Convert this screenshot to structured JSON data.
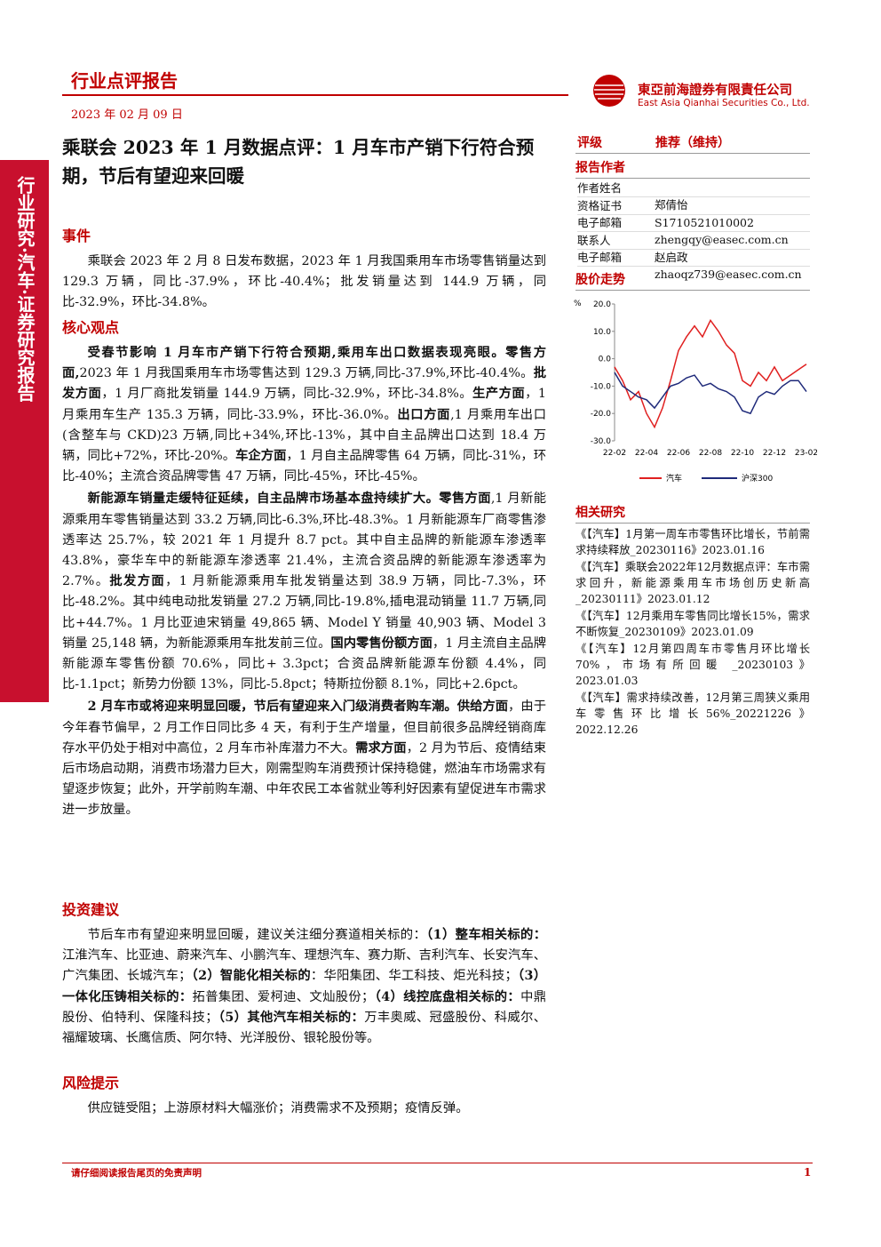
{
  "header": {
    "title": "行业点评报告",
    "date": "2023 年 02 月 09 日",
    "company_cn": "東亞前海證券有限責任公司",
    "company_en": "East Asia Qianhai Securities Co., Ltd."
  },
  "side_banner": "行业研究·汽车·证券研究报告",
  "title": "乘联会 2023 年 1 月数据点评：1 月车市产销下行符合预期，节后有望迎来回暖",
  "sections": [
    {
      "heading": "事件",
      "paragraphs": [
        {
          "runs": [
            "乘联会 2023 年 2 月 8 日发布数据，2023 年 1 月我国乘用车市场零售销量达到 129.3 万辆，同比-37.9%，环比-40.4%；批发销量达到 144.9 万辆，同比-32.9%，环比-34.8%。"
          ]
        }
      ]
    },
    {
      "heading": "核心观点",
      "paragraphs": [
        {
          "runs": [
            {
              "t": "受春节影响 1 月车市产销下行符合预期,乘用车出口数据表现亮眼。",
              "b": true
            },
            {
              "t": "零售方面,",
              "b": true
            },
            "2023 年 1 月我国乘用车市场零售达到 129.3 万辆,同比-37.9%,环比-40.4%。",
            {
              "t": "批发方面",
              "b": true
            },
            "，1 月厂商批发销量 144.9 万辆，同比-32.9%，环比-34.8%。",
            {
              "t": "生产方面",
              "b": true
            },
            "，1 月乘用车生产 135.3 万辆，同比-33.9%，环比-36.0%。",
            {
              "t": "出口方面",
              "b": true
            },
            ",1 月乘用车出口(含整车与 CKD)23 万辆,同比+34%,环比-13%，其中自主品牌出口达到 18.4 万辆，同比+72%，环比-20%。",
            {
              "t": "车企方面",
              "b": true
            },
            "，1 月自主品牌零售 64 万辆，同比-31%，环比-40%；主流合资品牌零售 47 万辆，同比-45%，环比-45%。"
          ]
        },
        {
          "runs": [
            {
              "t": "新能源车销量走缓特征延续，自主品牌市场基本盘持续扩大。零售方面",
              "b": true
            },
            ",1 月新能源乘用车零售销量达到 33.2 万辆,同比-6.3%,环比-48.3%。1 月新能源车厂商零售渗透率达 25.7%，较 2021 年 1 月提升 8.7 pct。其中自主品牌的新能源车渗透率 43.8%，豪华车中的新能源车渗透率 21.4%，主流合资品牌的新能源车渗透率为 2.7%。",
            {
              "t": "批发方面",
              "b": true
            },
            "，1 月新能源乘用车批发销量达到 38.9 万辆，同比-7.3%，环比-48.2%。其中纯电动批发销量 27.2 万辆,同比-19.8%,插电混动销量 11.7 万辆,同比+44.7%。1 月比亚迪宋销量 49,865 辆、Model Y 销量 40,903 辆、Model 3 销量 25,148 辆，为新能源乘用车批发前三位。",
            {
              "t": "国内零售份额方面",
              "b": true
            },
            "，1 月主流自主品牌新能源车零售份额 70.6%，同比+ 3.3pct；合资品牌新能源车份额 4.4%，同比-1.1pct；新势力份额 13%，同比-5.8pct；特斯拉份额 8.1%，同比+2.6pct。"
          ]
        },
        {
          "runs": [
            {
              "t": "2 月车市或将迎来明显回暖，节后有望迎来入门级消费者购车潮。供给方面",
              "b": true
            },
            "，由于今年春节偏早，2 月工作日同比多 4 天，有利于生产增量，但目前很多品牌经销商库存水平仍处于相对中高位，2 月车市补库潜力不大。",
            {
              "t": "需求方面",
              "b": true
            },
            "，2 月为节后、疫情结束后市场启动期，消费市场潜力巨大，刚需型购车消费预计保持稳健，燃油车市场需求有望逐步恢复；此外，开学前购车潮、中年农民工本省就业等利好因素有望促进车市需求进一步放量。"
          ]
        }
      ]
    },
    {
      "heading": "投资建议",
      "paragraphs": [
        {
          "runs": [
            "节后车市有望迎来明显回暖，建议关注细分赛道相关标的：",
            {
              "t": "（1）整车相关标的：",
              "b": true
            },
            "江淮汽车、比亚迪、蔚来汽车、小鹏汽车、理想汽车、赛力斯、吉利汽车、长安汽车、广汽集团、长城汽车；",
            {
              "t": "（2）智能化相关标的",
              "b": true
            },
            "：华阳集团、华工科技、炬光科技；",
            {
              "t": "（3）一体化压铸相关标的：",
              "b": true
            },
            "拓普集团、爱柯迪、文灿股份；",
            {
              "t": "（4）线控底盘相关标的：",
              "b": true
            },
            "中鼎股份、伯特利、保隆科技；",
            {
              "t": "（5）其他汽车相关标的：",
              "b": true
            },
            "万丰奥威、冠盛股份、科威尔、福耀玻璃、长鹰信质、阿尔特、光洋股份、银轮股份等。"
          ]
        }
      ]
    },
    {
      "heading": "风险提示",
      "paragraphs": [
        {
          "runs": [
            "供应链受阻；上游原材料大幅涨价；消费需求不及预期；疫情反弹。"
          ]
        }
      ]
    }
  ],
  "rating": {
    "label": "评级",
    "value": "推荐（维持）"
  },
  "authors": {
    "heading": "报告作者",
    "rows": [
      [
        "作者姓名",
        "郑倩怡"
      ],
      [
        "资格证书",
        "S1710521010002"
      ],
      [
        "电子邮箱",
        "zhengqy@easec.com.cn"
      ],
      [
        "联系人",
        "赵启政"
      ],
      [
        "电子邮箱",
        "zhaoqz739@easec.com.cn"
      ]
    ]
  },
  "stock_chart": {
    "heading": "股价走势",
    "type": "line",
    "unit": "%",
    "categories": [
      "22-02",
      null,
      null,
      null,
      "22-04",
      null,
      null,
      null,
      "22-06",
      null,
      null,
      null,
      "22-08",
      null,
      null,
      null,
      "22-10",
      null,
      null,
      null,
      "22-12",
      null,
      null,
      null,
      "23-02"
    ],
    "ylim": [
      -30,
      20
    ],
    "yticks": [
      {
        "value": 20,
        "label": "20.0"
      },
      {
        "value": 10,
        "label": "10.0"
      },
      {
        "value": 0,
        "label": "0.0"
      },
      {
        "value": -10,
        "label": "-10.0"
      },
      {
        "value": -20,
        "label": "-20.0"
      },
      {
        "value": -30,
        "label": "-30.0"
      }
    ],
    "series": [
      {
        "name": "汽车",
        "color": "#e02020",
        "values": [
          -3,
          -8,
          -15,
          -12,
          -20,
          -25,
          -18,
          -8,
          3,
          8,
          12,
          8,
          14,
          10,
          5,
          2,
          -8,
          -10,
          -5,
          -8,
          -3,
          -8,
          -6,
          -4,
          -2
        ]
      },
      {
        "name": "沪深300",
        "color": "#1f2a7a",
        "values": [
          -5,
          -10,
          -12,
          -14,
          -15,
          -18,
          -14,
          -10,
          -9,
          -7,
          -6,
          -10,
          -9,
          -11,
          -12,
          -14,
          -19,
          -20,
          -14,
          -12,
          -13,
          -10,
          -8,
          -8,
          -12
        ]
      }
    ]
  },
  "related": {
    "heading": "相关研究",
    "items": [
      "《【汽车】1月第一周车市零售环比增长，节前需求持续释放_20230116》2023.01.16",
      "《【汽车】乘联会2022年12月数据点评：车市需求回升，新能源乘用车市场创历史新高_20230111》2023.01.12",
      "《【汽车】12月乘用车零售同比增长15%，需求不断恢复_20230109》2023.01.09",
      "《【汽车】12月第四周车市零售月环比增长70%，市场有所回暖 _20230103》2023.01.03",
      "《【汽车】需求持续改善，12月第三周狭义乘用车零售环比增长56%_20221226》2022.12.26"
    ]
  },
  "footer": {
    "disclaimer": "请仔细阅读报告尾页的免责声明",
    "page": 1
  }
}
